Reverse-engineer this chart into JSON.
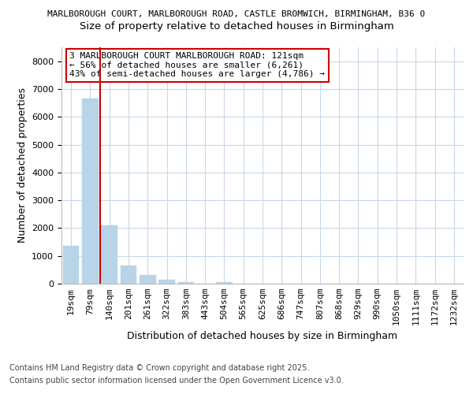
{
  "title_line1": "MARLBOROUGH COURT, MARLBOROUGH ROAD, CASTLE BROMWICH, BIRMINGHAM, B36 0",
  "title_line2": "Size of property relative to detached houses in Birmingham",
  "xlabel": "Distribution of detached houses by size in Birmingham",
  "ylabel": "Number of detached properties",
  "categories": [
    "19sqm",
    "79sqm",
    "140sqm",
    "201sqm",
    "261sqm",
    "322sqm",
    "383sqm",
    "443sqm",
    "504sqm",
    "565sqm",
    "625sqm",
    "686sqm",
    "747sqm",
    "807sqm",
    "868sqm",
    "929sqm",
    "990sqm",
    "1050sqm",
    "1111sqm",
    "1172sqm",
    "1232sqm"
  ],
  "values": [
    1350,
    6650,
    2100,
    640,
    310,
    150,
    60,
    0,
    60,
    0,
    0,
    0,
    0,
    0,
    0,
    0,
    0,
    0,
    0,
    0,
    0
  ],
  "bar_color": "#b8d4e8",
  "vline_x": 1.5,
  "vline_color": "#cc0000",
  "annotation_text": "3 MARLBOROUGH COURT MARLBOROUGH ROAD: 121sqm\n← 56% of detached houses are smaller (6,261)\n43% of semi-detached houses are larger (4,786) →",
  "annotation_box_color": "#ffffff",
  "annotation_box_edge_color": "#cc0000",
  "ylim": [
    0,
    8500
  ],
  "yticks": [
    0,
    1000,
    2000,
    3000,
    4000,
    5000,
    6000,
    7000,
    8000
  ],
  "background_color": "#ffffff",
  "grid_color": "#c8d8e8",
  "footer_line1": "Contains HM Land Registry data © Crown copyright and database right 2025.",
  "footer_line2": "Contains public sector information licensed under the Open Government Licence v3.0.",
  "title_fontsize": 8,
  "subtitle_fontsize": 9.5,
  "axis_label_fontsize": 9,
  "tick_fontsize": 8,
  "annotation_fontsize": 8,
  "footer_fontsize": 7
}
